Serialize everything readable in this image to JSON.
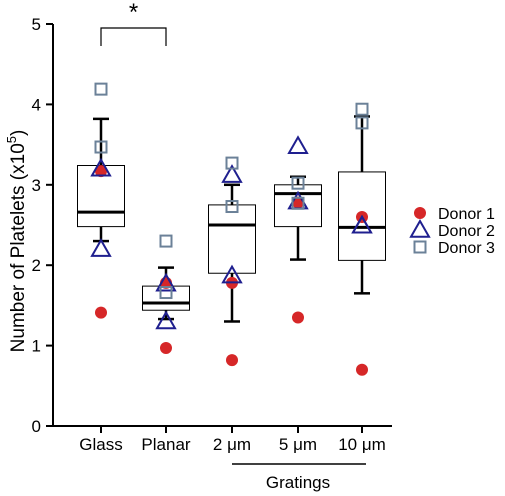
{
  "chart_data": {
    "type": "box",
    "ylabel": "Number of Platelets (x10",
    "ylabel_exp": "5",
    "ylabel_close": ")",
    "ylim": [
      0,
      5
    ],
    "yticks": [
      "0",
      "1",
      "2",
      "3",
      "4",
      "5"
    ],
    "categories": [
      "Glass",
      "Planar",
      "2 μm",
      "5 μm",
      "10 μm"
    ],
    "group_label": "Gratings",
    "significance": {
      "between": [
        "Glass",
        "Planar"
      ],
      "label": "*"
    },
    "boxes": [
      {
        "category": "Glass",
        "whisker_low": 2.3,
        "q1": 2.48,
        "median": 2.66,
        "q3": 3.24,
        "whisker_high": 3.82
      },
      {
        "category": "Planar",
        "whisker_low": 1.33,
        "q1": 1.44,
        "median": 1.53,
        "q3": 1.74,
        "whisker_high": 1.97
      },
      {
        "category": "2 μm",
        "whisker_low": 1.3,
        "q1": 1.9,
        "median": 2.5,
        "q3": 2.75,
        "whisker_high": 3.0
      },
      {
        "category": "5 μm",
        "whisker_low": 2.07,
        "q1": 2.48,
        "median": 2.89,
        "q3": 3.0,
        "whisker_high": 3.1
      },
      {
        "category": "10 μm",
        "whisker_low": 1.65,
        "q1": 2.06,
        "median": 2.47,
        "q3": 3.16,
        "whisker_high": 3.85
      }
    ],
    "series": [
      {
        "name": "Donor 1",
        "marker": "circle",
        "color": "#d62728",
        "values": [
          1.41,
          0.97,
          0.82,
          1.35,
          0.7
        ]
      },
      {
        "name": "Donor 1",
        "marker": "circle",
        "color": "#d62728",
        "values": [
          3.17,
          1.78,
          1.78,
          2.78,
          2.6
        ],
        "legend": false
      },
      {
        "name": "Donor 2",
        "marker": "triangle",
        "color": "#1f1f8f",
        "values": [
          2.2,
          1.3,
          1.87,
          3.48,
          2.49
        ]
      },
      {
        "name": "Donor 2",
        "marker": "triangle",
        "color": "#1f1f8f",
        "values": [
          3.2,
          1.77,
          3.12,
          2.79,
          2.49
        ],
        "legend": false
      },
      {
        "name": "Donor 3",
        "marker": "square",
        "color": "#6b8198",
        "values": [
          4.19,
          2.3,
          3.27,
          3.02,
          3.94
        ]
      },
      {
        "name": "Donor 3",
        "marker": "square",
        "color": "#6b8198",
        "values": [
          3.47,
          1.66,
          2.73,
          2.77,
          3.77
        ],
        "legend": false
      }
    ],
    "legend": {
      "position": "right"
    },
    "grid": false
  }
}
